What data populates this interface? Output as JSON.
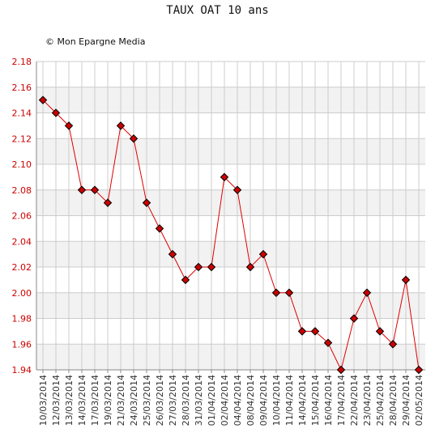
{
  "chart_data": {
    "type": "line",
    "title": "TAUX OAT 10 ans",
    "credit": "© Mon Epargne Media",
    "xlabel": "",
    "ylabel": "",
    "ylim": [
      1.94,
      2.18
    ],
    "yticks": [
      "2.18",
      "2.16",
      "2.14",
      "2.12",
      "2.10",
      "2.08",
      "2.06",
      "2.04",
      "2.02",
      "2.00",
      "1.98",
      "1.96",
      "1.94"
    ],
    "x": [
      "10/03/2014",
      "12/03/2014",
      "13/03/2014",
      "14/03/2014",
      "17/03/2014",
      "19/03/2014",
      "21/03/2014",
      "24/03/2014",
      "25/03/2014",
      "26/03/2014",
      "27/03/2014",
      "28/03/2014",
      "31/03/2014",
      "01/04/2014",
      "02/04/2014",
      "04/04/2014",
      "08/04/2014",
      "09/04/2014",
      "10/04/2014",
      "11/04/2014",
      "14/04/2014",
      "15/04/2014",
      "16/04/2014",
      "17/04/2014",
      "22/04/2014",
      "23/04/2014",
      "25/04/2014",
      "28/04/2014",
      "29/04/2014",
      "02/05/2014"
    ],
    "series": [
      {
        "name": "",
        "values": [
          2.15,
          2.14,
          2.13,
          2.08,
          2.08,
          2.07,
          2.13,
          2.12,
          2.07,
          2.05,
          2.03,
          2.01,
          2.02,
          2.02,
          2.09,
          2.08,
          2.02,
          2.03,
          2.0,
          2.0,
          1.97,
          1.97,
          1.961,
          1.94,
          1.98,
          2.0,
          1.97,
          1.96,
          2.01,
          1.94
        ]
      }
    ],
    "grid": true,
    "line_color": "#e00000",
    "marker_color": "#cc0000",
    "band_color": "#f2f2f2",
    "grid_color": "#cccccc"
  }
}
